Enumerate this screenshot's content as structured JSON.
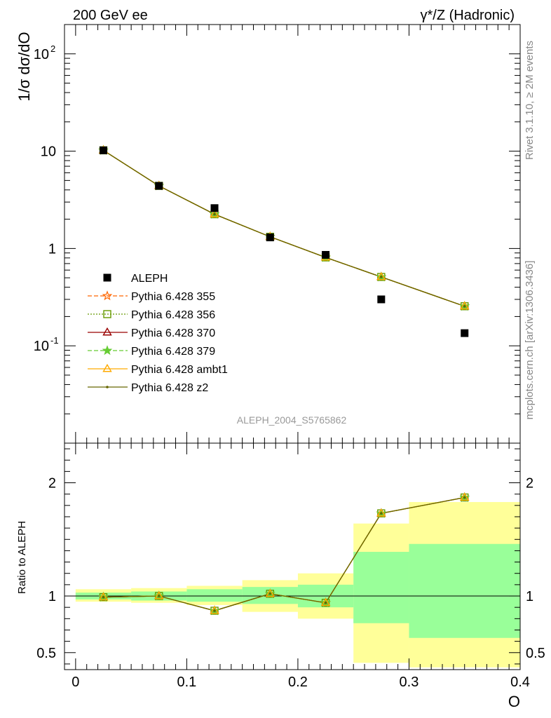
{
  "header": {
    "left": "200 GeV ee",
    "right": "γ*/Z (Hadronic)"
  },
  "side_text": {
    "top": "Rivet 3.1.10, ≥ 2M events",
    "bottom": "mcplots.cern.ch [arXiv:1306.3436]"
  },
  "analysis_label": "ALEPH_2004_S5765862",
  "chart_data": [
    {
      "type": "line",
      "ylabel": "1/σ dσ/dO",
      "yscale": "log",
      "ylim": [
        0.01,
        200
      ],
      "xlim": [
        -0.01,
        0.4
      ],
      "ytick_labels": [
        "10^-1",
        "1",
        "10",
        "10^2"
      ],
      "data": {
        "name": "ALEPH",
        "x": [
          0.025,
          0.075,
          0.125,
          0.175,
          0.225,
          0.275,
          0.35
        ],
        "y": [
          10.2,
          4.4,
          2.6,
          1.3,
          0.86,
          0.3,
          0.135
        ]
      },
      "series": [
        {
          "name": "Pythia 6.428 355",
          "color": "#ff6600",
          "marker": "star-open",
          "dash": "6,3",
          "x": [
            0.025,
            0.075,
            0.125,
            0.175,
            0.225,
            0.275,
            0.35
          ],
          "y": [
            10.2,
            4.4,
            2.25,
            1.32,
            0.81,
            0.51,
            0.255
          ]
        },
        {
          "name": "Pythia 6.428 356",
          "color": "#669900",
          "marker": "square-open",
          "dash": "2,2",
          "x": [
            0.025,
            0.075,
            0.125,
            0.175,
            0.225,
            0.275,
            0.35
          ],
          "y": [
            10.2,
            4.4,
            2.25,
            1.32,
            0.81,
            0.51,
            0.255
          ]
        },
        {
          "name": "Pythia 6.428 370",
          "color": "#990000",
          "marker": "triangle-open",
          "dash": "",
          "x": [
            0.025,
            0.075,
            0.125,
            0.175,
            0.225,
            0.275,
            0.35
          ],
          "y": [
            10.2,
            4.4,
            2.25,
            1.32,
            0.81,
            0.51,
            0.255
          ]
        },
        {
          "name": "Pythia 6.428 379",
          "color": "#66cc33",
          "marker": "star",
          "dash": "6,3",
          "x": [
            0.025,
            0.075,
            0.125,
            0.175,
            0.225,
            0.275,
            0.35
          ],
          "y": [
            10.2,
            4.4,
            2.25,
            1.32,
            0.81,
            0.51,
            0.255
          ]
        },
        {
          "name": "Pythia 6.428 ambt1",
          "color": "#ffaa00",
          "marker": "triangle-open",
          "dash": "",
          "x": [
            0.025,
            0.075,
            0.125,
            0.175,
            0.225,
            0.275,
            0.35
          ],
          "y": [
            10.2,
            4.4,
            2.25,
            1.32,
            0.81,
            0.51,
            0.255
          ]
        },
        {
          "name": "Pythia 6.428 z2",
          "color": "#666600",
          "marker": "dot",
          "dash": "",
          "x": [
            0.025,
            0.075,
            0.125,
            0.175,
            0.225,
            0.275,
            0.35
          ],
          "y": [
            10.2,
            4.4,
            2.25,
            1.32,
            0.81,
            0.51,
            0.255
          ]
        }
      ]
    },
    {
      "type": "line",
      "ylabel": "Ratio to ALEPH",
      "xlabel": "O",
      "ylim": [
        0.35,
        2.35
      ],
      "xlim": [
        -0.01,
        0.4
      ],
      "yticks": [
        0.5,
        1,
        2
      ],
      "ytick_labels": [
        "0.5",
        "1",
        "2"
      ],
      "xticks": [
        0,
        0.1,
        0.2,
        0.3,
        0.4
      ],
      "xtick_labels": [
        "0",
        "0.1",
        "0.2",
        "0.3",
        "0.4"
      ],
      "bins": [
        {
          "x0": 0.0,
          "x1": 0.05,
          "stat": [
            0.97,
            1.03
          ],
          "total": [
            0.95,
            1.06
          ]
        },
        {
          "x0": 0.05,
          "x1": 0.1,
          "stat": [
            0.96,
            1.04
          ],
          "total": [
            0.94,
            1.07
          ]
        },
        {
          "x0": 0.1,
          "x1": 0.15,
          "stat": [
            0.95,
            1.06
          ],
          "total": [
            0.92,
            1.09
          ]
        },
        {
          "x0": 0.15,
          "x1": 0.2,
          "stat": [
            0.93,
            1.08
          ],
          "total": [
            0.86,
            1.14
          ]
        },
        {
          "x0": 0.2,
          "x1": 0.25,
          "stat": [
            0.9,
            1.1
          ],
          "total": [
            0.8,
            1.2
          ]
        },
        {
          "x0": 0.25,
          "x1": 0.3,
          "stat": [
            0.76,
            1.39
          ],
          "total": [
            0.41,
            1.64
          ]
        },
        {
          "x0": 0.3,
          "x1": 0.4,
          "stat": [
            0.63,
            1.46
          ],
          "total": [
            0.37,
            1.83
          ]
        }
      ],
      "ratio": {
        "x": [
          0.025,
          0.075,
          0.125,
          0.175,
          0.225,
          0.275,
          0.35
        ],
        "y": [
          0.99,
          1.0,
          0.87,
          1.02,
          0.94,
          1.73,
          1.87
        ]
      }
    }
  ]
}
